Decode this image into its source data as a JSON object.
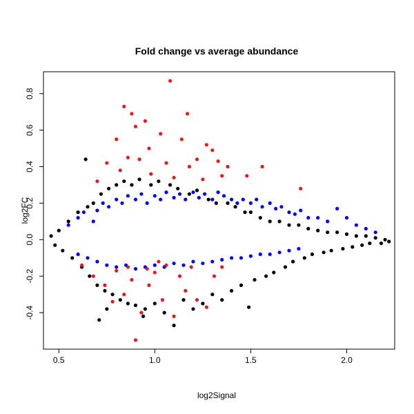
{
  "chart_data": {
    "type": "scatter",
    "title": "Fold change vs average abundance",
    "xlabel": "log2Signal",
    "ylabel": "log2FC",
    "xlim": [
      0.42,
      2.25
    ],
    "ylim": [
      -0.6,
      0.92
    ],
    "x_ticks": [
      0.5,
      1.0,
      1.5,
      2.0
    ],
    "x_tick_labels": [
      "0.5",
      "1.0",
      "1.5",
      "2.0"
    ],
    "y_ticks": [
      -0.4,
      -0.2,
      0.0,
      0.2,
      0.4,
      0.6,
      0.8
    ],
    "y_tick_labels": [
      "-0.4",
      "-0.2",
      "0.0",
      "0.2",
      "0.4",
      "0.6",
      "0.8"
    ],
    "grid": false,
    "legend": "none",
    "colors": {
      "black": "#000000",
      "blue": "#0000ff",
      "red": "#e41a1c"
    },
    "series": [
      {
        "color": "black",
        "points": [
          [
            0.46,
            0.02
          ],
          [
            0.48,
            -0.03
          ],
          [
            0.5,
            0.05
          ],
          [
            0.52,
            -0.06
          ],
          [
            0.55,
            0.1
          ],
          [
            0.57,
            -0.1
          ],
          [
            0.6,
            0.15
          ],
          [
            0.62,
            -0.15
          ],
          [
            0.65,
            0.18
          ],
          [
            0.66,
            -0.2
          ],
          [
            0.68,
            0.2
          ],
          [
            0.7,
            -0.25
          ],
          [
            0.72,
            0.25
          ],
          [
            0.74,
            -0.28
          ],
          [
            0.76,
            0.28
          ],
          [
            0.78,
            -0.3
          ],
          [
            0.8,
            0.3
          ],
          [
            0.82,
            -0.33
          ],
          [
            0.84,
            0.32
          ],
          [
            0.86,
            -0.35
          ],
          [
            0.88,
            0.3
          ],
          [
            0.9,
            -0.36
          ],
          [
            0.92,
            0.33
          ],
          [
            0.95,
            -0.38
          ],
          [
            0.98,
            0.3
          ],
          [
            1.0,
            -0.35
          ],
          [
            1.02,
            0.32
          ],
          [
            1.05,
            -0.4
          ],
          [
            1.08,
            0.3
          ],
          [
            1.1,
            -0.47
          ],
          [
            1.12,
            0.28
          ],
          [
            1.15,
            -0.33
          ],
          [
            1.18,
            0.25
          ],
          [
            1.2,
            -0.38
          ],
          [
            1.22,
            0.27
          ],
          [
            1.25,
            -0.35
          ],
          [
            1.28,
            0.22
          ],
          [
            1.3,
            -0.3
          ],
          [
            1.32,
            0.2
          ],
          [
            1.35,
            -0.33
          ],
          [
            1.38,
            0.2
          ],
          [
            1.4,
            -0.28
          ],
          [
            1.42,
            0.18
          ],
          [
            1.45,
            -0.25
          ],
          [
            1.47,
            0.15
          ],
          [
            1.49,
            -0.37
          ],
          [
            1.5,
            0.15
          ],
          [
            1.52,
            -0.22
          ],
          [
            1.55,
            0.12
          ],
          [
            1.58,
            -0.2
          ],
          [
            1.6,
            0.1
          ],
          [
            1.62,
            -0.18
          ],
          [
            1.65,
            0.1
          ],
          [
            1.68,
            -0.15
          ],
          [
            1.7,
            0.08
          ],
          [
            1.72,
            -0.12
          ],
          [
            1.75,
            0.08
          ],
          [
            1.78,
            -0.1
          ],
          [
            1.8,
            0.06
          ],
          [
            1.82,
            -0.08
          ],
          [
            1.85,
            0.05
          ],
          [
            1.88,
            -0.07
          ],
          [
            1.9,
            0.04
          ],
          [
            1.92,
            -0.06
          ],
          [
            1.95,
            0.04
          ],
          [
            1.98,
            -0.05
          ],
          [
            2.0,
            0.03
          ],
          [
            2.03,
            -0.04
          ],
          [
            2.05,
            0.02
          ],
          [
            2.08,
            -0.03
          ],
          [
            2.1,
            0.02
          ],
          [
            2.12,
            -0.02
          ],
          [
            2.15,
            0.01
          ],
          [
            2.18,
            -0.02
          ],
          [
            2.2,
            0.0
          ],
          [
            2.22,
            -0.01
          ],
          [
            0.71,
            -0.44
          ],
          [
            0.64,
            0.44
          ],
          [
            0.75,
            -0.38
          ],
          [
            0.94,
            -0.42
          ]
        ]
      },
      {
        "color": "blue",
        "points": [
          [
            0.55,
            0.08
          ],
          [
            0.6,
            0.12
          ],
          [
            0.63,
            0.15
          ],
          [
            0.68,
            0.1
          ],
          [
            0.7,
            0.16
          ],
          [
            0.73,
            0.2
          ],
          [
            0.76,
            0.18
          ],
          [
            0.8,
            0.22
          ],
          [
            0.83,
            0.2
          ],
          [
            0.86,
            0.24
          ],
          [
            0.9,
            0.22
          ],
          [
            0.93,
            0.25
          ],
          [
            0.96,
            0.2
          ],
          [
            1.0,
            0.24
          ],
          [
            1.03,
            0.22
          ],
          [
            1.06,
            0.26
          ],
          [
            1.1,
            0.23
          ],
          [
            1.13,
            0.25
          ],
          [
            1.16,
            0.22
          ],
          [
            1.2,
            0.26
          ],
          [
            1.23,
            0.23
          ],
          [
            1.26,
            0.25
          ],
          [
            1.3,
            0.22
          ],
          [
            1.33,
            0.26
          ],
          [
            1.36,
            0.24
          ],
          [
            1.4,
            0.22
          ],
          [
            1.43,
            0.2
          ],
          [
            1.46,
            0.22
          ],
          [
            1.5,
            0.2
          ],
          [
            1.53,
            0.22
          ],
          [
            1.56,
            0.18
          ],
          [
            1.6,
            0.2
          ],
          [
            1.63,
            0.17
          ],
          [
            1.66,
            0.18
          ],
          [
            1.7,
            0.15
          ],
          [
            1.73,
            0.14
          ],
          [
            1.76,
            0.16
          ],
          [
            1.8,
            0.12
          ],
          [
            1.85,
            0.12
          ],
          [
            1.9,
            0.1
          ],
          [
            1.95,
            0.17
          ],
          [
            2.0,
            0.12
          ],
          [
            2.05,
            0.08
          ],
          [
            2.1,
            0.06
          ],
          [
            2.15,
            0.04
          ],
          [
            0.6,
            -0.08
          ],
          [
            0.65,
            -0.1
          ],
          [
            0.7,
            -0.12
          ],
          [
            0.75,
            -0.14
          ],
          [
            0.8,
            -0.15
          ],
          [
            0.85,
            -0.14
          ],
          [
            0.9,
            -0.16
          ],
          [
            0.95,
            -0.15
          ],
          [
            1.0,
            -0.14
          ],
          [
            1.05,
            -0.15
          ],
          [
            1.1,
            -0.13
          ],
          [
            1.15,
            -0.14
          ],
          [
            1.2,
            -0.12
          ],
          [
            1.25,
            -0.13
          ],
          [
            1.3,
            -0.12
          ],
          [
            1.35,
            -0.11
          ],
          [
            1.4,
            -0.1
          ],
          [
            1.45,
            -0.1
          ],
          [
            1.5,
            -0.09
          ],
          [
            1.55,
            -0.08
          ],
          [
            1.6,
            -0.08
          ],
          [
            1.65,
            -0.07
          ],
          [
            1.7,
            -0.06
          ],
          [
            1.75,
            -0.05
          ]
        ]
      },
      {
        "color": "red",
        "points": [
          [
            1.08,
            0.87
          ],
          [
            0.84,
            0.73
          ],
          [
            0.88,
            0.69
          ],
          [
            1.17,
            0.69
          ],
          [
            0.95,
            0.65
          ],
          [
            0.9,
            0.62
          ],
          [
            1.03,
            0.58
          ],
          [
            0.8,
            0.55
          ],
          [
            1.14,
            0.55
          ],
          [
            0.97,
            0.5
          ],
          [
            1.27,
            0.52
          ],
          [
            1.3,
            0.49
          ],
          [
            0.86,
            0.45
          ],
          [
            0.92,
            0.44
          ],
          [
            1.22,
            0.44
          ],
          [
            1.33,
            0.43
          ],
          [
            0.75,
            0.42
          ],
          [
            1.06,
            0.42
          ],
          [
            1.18,
            0.4
          ],
          [
            1.38,
            0.4
          ],
          [
            1.48,
            0.35
          ],
          [
            1.56,
            0.4
          ],
          [
            1.76,
            0.28
          ],
          [
            0.7,
            0.32
          ],
          [
            0.82,
            0.38
          ],
          [
            0.98,
            0.36
          ],
          [
            1.1,
            0.34
          ],
          [
            1.25,
            0.33
          ],
          [
            1.35,
            0.35
          ],
          [
            0.62,
            -0.14
          ],
          [
            0.68,
            -0.2
          ],
          [
            0.74,
            -0.25
          ],
          [
            0.78,
            -0.34
          ],
          [
            0.84,
            -0.3
          ],
          [
            0.88,
            -0.22
          ],
          [
            0.9,
            -0.55
          ],
          [
            0.93,
            -0.4
          ],
          [
            0.97,
            -0.25
          ],
          [
            1.0,
            -0.18
          ],
          [
            1.04,
            -0.33
          ],
          [
            1.06,
            -0.14
          ],
          [
            1.1,
            -0.42
          ],
          [
            1.13,
            -0.2
          ],
          [
            1.16,
            -0.28
          ],
          [
            1.19,
            -0.15
          ],
          [
            1.22,
            -0.33
          ],
          [
            1.27,
            -0.37
          ],
          [
            1.31,
            -0.2
          ],
          [
            1.35,
            -0.15
          ],
          [
            0.8,
            -0.17
          ],
          [
            0.86,
            -0.15
          ],
          [
            0.96,
            -0.16
          ],
          [
            1.02,
            -0.12
          ]
        ]
      }
    ]
  }
}
